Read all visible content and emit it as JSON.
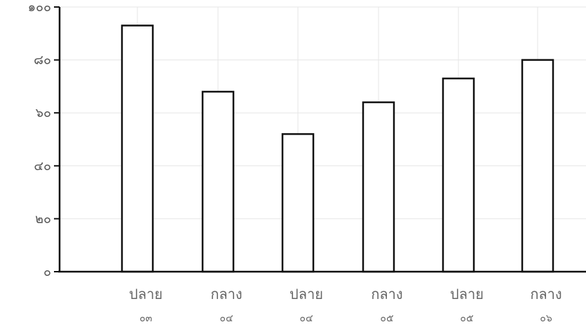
{
  "chart_data": {
    "type": "bar",
    "categories": [
      "ปลาย",
      "กลาง",
      "ปลาย",
      "กลาง",
      "ปลาย",
      "กลาง"
    ],
    "category_sublabels": [
      "๐๓",
      "๐๔",
      "๐๔",
      "๐๕",
      "๐๕",
      "๐๖"
    ],
    "values": [
      93,
      68,
      52,
      64,
      73,
      80
    ],
    "ylim": [
      0,
      100
    ],
    "yticks": [
      0,
      20,
      40,
      60,
      80,
      100
    ],
    "ytick_labels": [
      "๐",
      "๒๐",
      "๔๐",
      "๖๐",
      "๘๐",
      "๑๐๐"
    ],
    "grid": true,
    "title": "",
    "xlabel": "",
    "ylabel": "",
    "colors": {
      "bar_fill": "#ffffff",
      "bar_stroke": "#111111",
      "axis": "#111111",
      "grid": "#e6e6e6"
    }
  }
}
